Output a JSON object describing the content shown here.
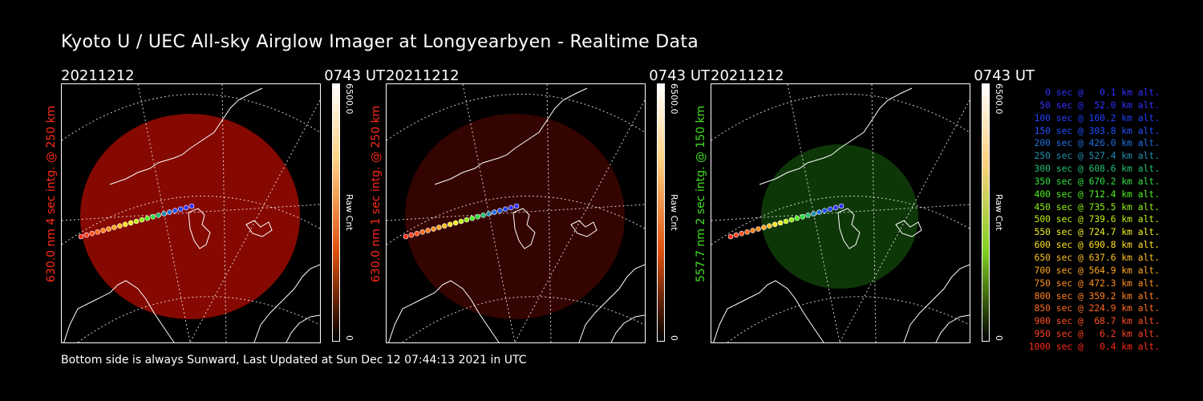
{
  "title": "Kyoto U / UEC All-sky Airglow Imager at Longyearbyen - Realtime Data",
  "footer": "Bottom side is always Sunward, Last Updated at Sun Dec 12 07:44:13 2021 in UTC",
  "colorbar": {
    "max": "6500.0",
    "zero": "0",
    "unit": "Raw Cnt"
  },
  "panels": [
    {
      "date": "20211212",
      "time": "0743 UT",
      "label": "630.0 nm 4 sec intg. @ 250 km",
      "label_color": "#ff2a1a",
      "fill": "#8c0a00",
      "fill_opacity": 0.95,
      "bar_color": "#e05010"
    },
    {
      "date": "20211212",
      "time": "0743 UT",
      "label": "630.0 nm 1 sec intg. @ 250 km",
      "label_color": "#ff2a1a",
      "fill": "#3a0400",
      "fill_opacity": 0.9,
      "bar_color": "#e05010"
    },
    {
      "date": "20211212",
      "time": "0743 UT",
      "label": "557.7 nm 2 sec intg. @ 150 km",
      "label_color": "#40e020",
      "fill": "#0f3a08",
      "fill_opacity": 0.95,
      "bar_color": "#80d020"
    }
  ],
  "legend": [
    {
      "text": "0 sec @   0.1 km alt.",
      "color": "#3030ff"
    },
    {
      "text": "50 sec @  52.0 km alt.",
      "color": "#3030ff"
    },
    {
      "text": "100 sec @ 160.2 km alt.",
      "color": "#2040ff"
    },
    {
      "text": "150 sec @ 303.8 km alt.",
      "color": "#2050ff"
    },
    {
      "text": "200 sec @ 426.0 km alt.",
      "color": "#2070e0"
    },
    {
      "text": "250 sec @ 527.4 km alt.",
      "color": "#1e90b0"
    },
    {
      "text": "300 sec @ 608.6 km alt.",
      "color": "#20c070"
    },
    {
      "text": "350 sec @ 670.2 km alt.",
      "color": "#30e040"
    },
    {
      "text": "400 sec @ 712.4 km alt.",
      "color": "#50f020"
    },
    {
      "text": "450 sec @ 735.5 km alt.",
      "color": "#90f010"
    },
    {
      "text": "500 sec @ 739.6 km alt.",
      "color": "#c0f010"
    },
    {
      "text": "550 sec @ 724.7 km alt.",
      "color": "#f0f020"
    },
    {
      "text": "600 sec @ 690.8 km alt.",
      "color": "#ffe020"
    },
    {
      "text": "650 sec @ 637.6 km alt.",
      "color": "#ffc020"
    },
    {
      "text": "700 sec @ 564.9 km alt.",
      "color": "#ffa820"
    },
    {
      "text": "750 sec @ 472.3 km alt.",
      "color": "#ff9020"
    },
    {
      "text": "800 sec @ 359.2 km alt.",
      "color": "#ff8020"
    },
    {
      "text": "850 sec @ 224.9 km alt.",
      "color": "#ff6a20"
    },
    {
      "text": "900 sec @  68.7 km alt.",
      "color": "#ff5020"
    },
    {
      "text": "950 sec @   6.2 km alt.",
      "color": "#ff4020"
    },
    {
      "text": "1000 sec @   0.4 km alt.",
      "color": "#ff2a1a"
    }
  ]
}
